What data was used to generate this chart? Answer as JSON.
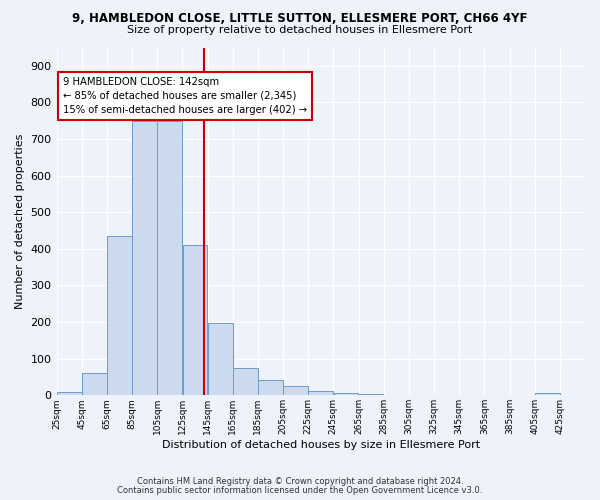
{
  "title": "9, HAMBLEDON CLOSE, LITTLE SUTTON, ELLESMERE PORT, CH66 4YF",
  "subtitle": "Size of property relative to detached houses in Ellesmere Port",
  "xlabel": "Distribution of detached houses by size in Ellesmere Port",
  "ylabel": "Number of detached properties",
  "bins": [
    25,
    45,
    65,
    85,
    105,
    125,
    145,
    165,
    185,
    205,
    225,
    245,
    265,
    285,
    305,
    325,
    345,
    365,
    385,
    405,
    425,
    445
  ],
  "counts": [
    10,
    60,
    435,
    750,
    750,
    410,
    198,
    75,
    42,
    26,
    13,
    5,
    3,
    0,
    0,
    0,
    0,
    0,
    0,
    5,
    0
  ],
  "bar_color": "#ccdaf0",
  "bar_edge_color": "#7099c8",
  "vline_x": 142,
  "vline_color": "#cc0000",
  "annotation_text": "9 HAMBLEDON CLOSE: 142sqm\n← 85% of detached houses are smaller (2,345)\n15% of semi-detached houses are larger (402) →",
  "annotation_box_color": "white",
  "annotation_box_edge": "#cc0000",
  "ylim": [
    0,
    950
  ],
  "xlim": [
    25,
    445
  ],
  "background_color": "#eef2fb",
  "footer_line1": "Contains HM Land Registry data © Crown copyright and database right 2024.",
  "footer_line2": "Contains public sector information licensed under the Open Government Licence v3.0.",
  "tick_labels": [
    "25sqm",
    "45sqm",
    "65sqm",
    "85sqm",
    "105sqm",
    "125sqm",
    "145sqm",
    "165sqm",
    "185sqm",
    "205sqm",
    "225sqm",
    "245sqm",
    "265sqm",
    "285sqm",
    "305sqm",
    "325sqm",
    "345sqm",
    "365sqm",
    "385sqm",
    "405sqm",
    "425sqm"
  ]
}
